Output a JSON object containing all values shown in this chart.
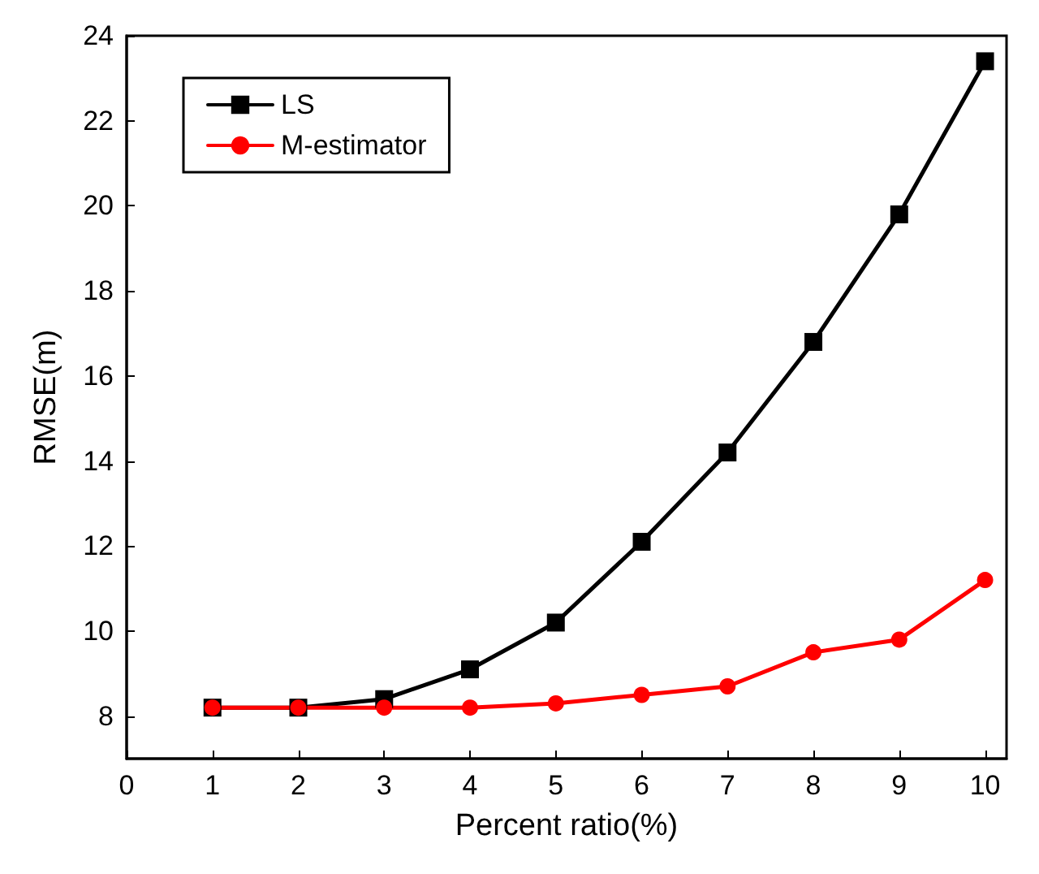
{
  "chart_data": {
    "type": "line",
    "xlabel": "Percent ratio(%)",
    "ylabel": "RMSE(m)",
    "x": [
      1,
      2,
      3,
      4,
      5,
      6,
      7,
      8,
      9,
      10
    ],
    "xlim": [
      0,
      10.25
    ],
    "xticks": [
      0,
      1,
      2,
      3,
      4,
      5,
      6,
      7,
      8,
      9,
      10
    ],
    "ylim": [
      7,
      24
    ],
    "yticks": [
      8,
      10,
      12,
      14,
      16,
      18,
      20,
      22,
      24
    ],
    "grid": false,
    "legend": "top left",
    "line_style": "solid",
    "series": [
      {
        "name": "LS",
        "color": "#000000",
        "marker": "square",
        "values": [
          8.2,
          8.2,
          8.4,
          9.1,
          10.2,
          12.1,
          14.2,
          16.8,
          19.8,
          23.4
        ]
      },
      {
        "name": "M-estimator",
        "color": "#ff0000",
        "marker": "circle",
        "values": [
          8.2,
          8.2,
          8.2,
          8.2,
          8.3,
          8.5,
          8.7,
          9.5,
          9.8,
          11.2
        ]
      }
    ]
  }
}
